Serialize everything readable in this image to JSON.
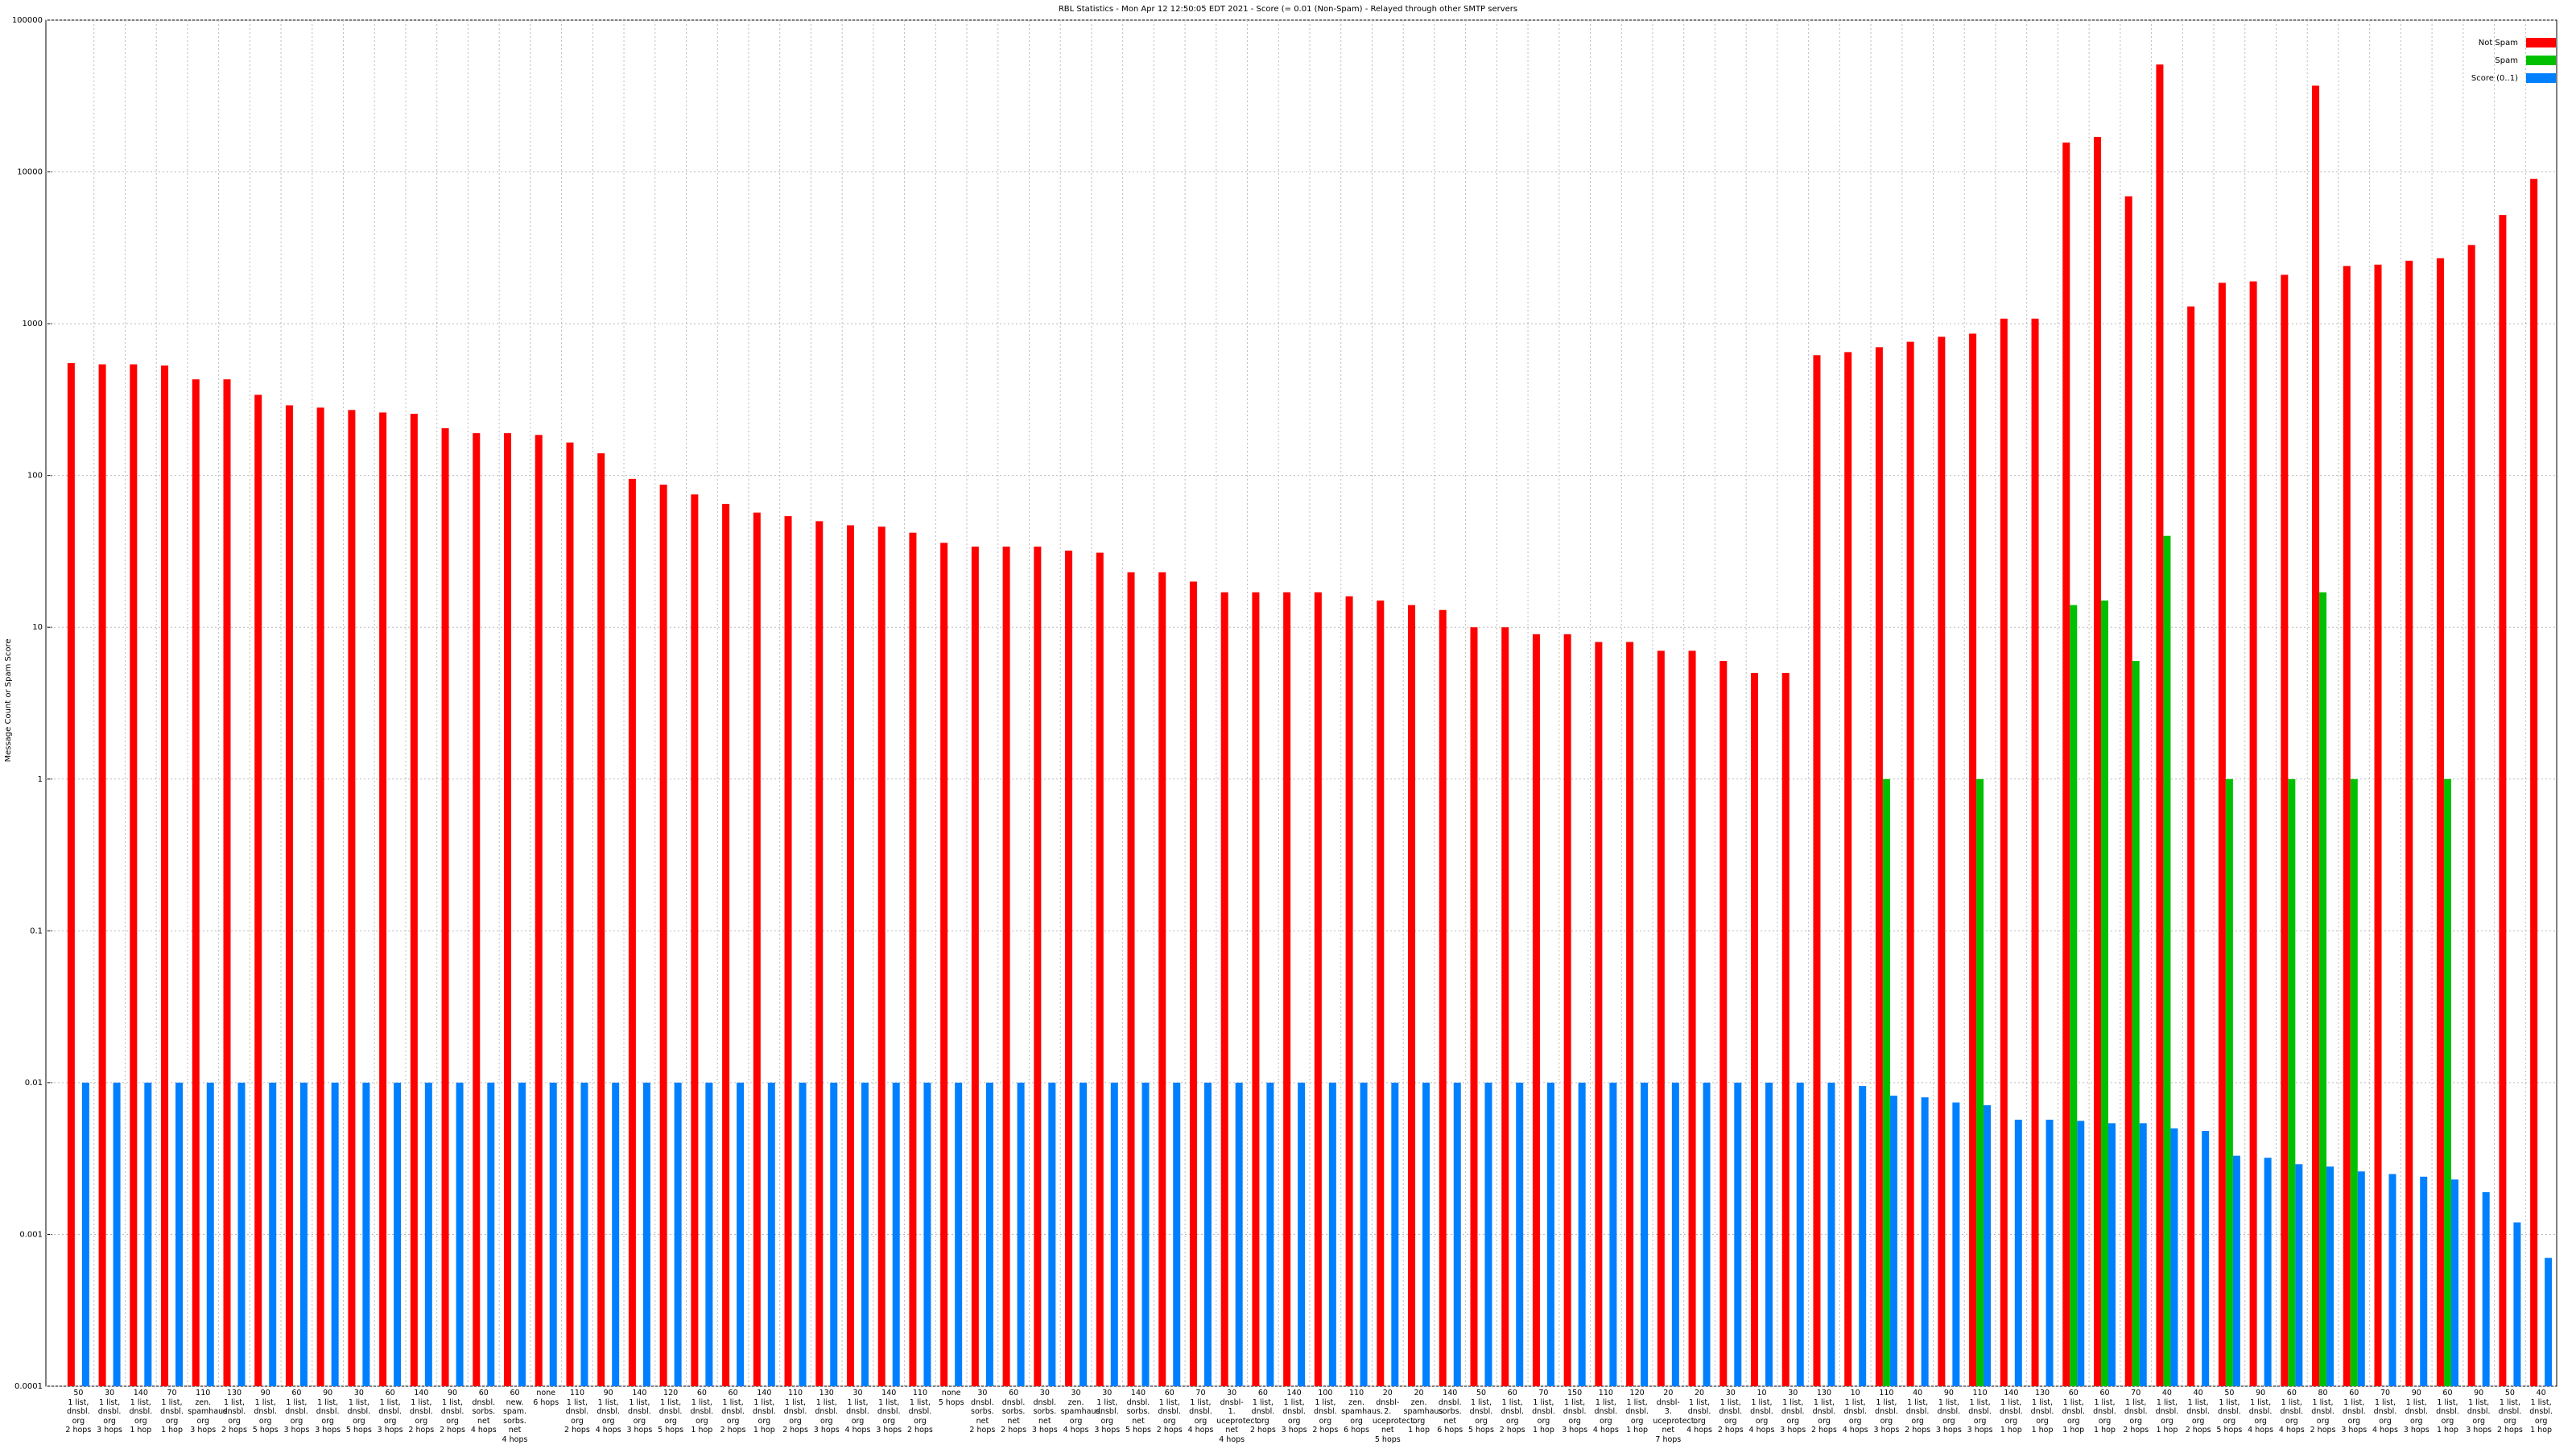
{
  "chart_data": {
    "type": "bar",
    "title": "RBL Statistics - Mon Apr 12 12:50:05 EDT 2021 - Score (= 0.01 (Non-Spam) - Relayed through other SMTP servers",
    "y_label": "Message Count or Spam Score",
    "log_scale": true,
    "grid": true,
    "legend": "upper right",
    "ylim": [
      0.0001,
      100000
    ],
    "yticks": [
      0.0001,
      0.001,
      0.01,
      0.1,
      1,
      10,
      100,
      1000,
      10000,
      100000
    ],
    "categories": [
      "50\n1 list,\ndnsbl.\norg\n2 hops",
      "30\n1 list,\ndnsbl.\norg\n3 hops",
      "140\n1 list,\ndnsbl.\norg\n1 hop",
      "70\n1 list,\ndnsbl.\norg\n1 hop",
      "110\nzen.\nspamhaus.\norg\n3 hops",
      "130\n1 list,\ndnsbl.\norg\n2 hops",
      "90\n1 list,\ndnsbl.\norg\n5 hops",
      "60\n1 list,\ndnsbl.\norg\n3 hops",
      "90\n1 list,\ndnsbl.\norg\n3 hops",
      "30\n1 list,\ndnsbl.\norg\n5 hops",
      "60\n1 list,\ndnsbl.\norg\n3 hops",
      "140\n1 list,\ndnsbl.\norg\n2 hops",
      "90\n1 list,\ndnsbl.\norg\n2 hops",
      "60\ndnsbl.\nsorbs.\nnet\n4 hops",
      "60\nnew.\nspam.\nsorbs.\nnet\n4 hops",
      "none\n6 hops",
      "110\n1 list,\ndnsbl.\norg\n2 hops",
      "90\n1 list,\ndnsbl.\norg\n4 hops",
      "140\n1 list,\ndnsbl.\norg\n3 hops",
      "120\n1 list,\ndnsbl.\norg\n5 hops",
      "60\n1 list,\ndnsbl.\norg\n1 hop",
      "60\n1 list,\ndnsbl.\norg\n2 hops",
      "140\n1 list,\ndnsbl.\norg\n1 hop",
      "110\n1 list,\ndnsbl.\norg\n2 hops",
      "130\n1 list,\ndnsbl.\norg\n3 hops",
      "30\n1 list,\ndnsbl.\norg\n4 hops",
      "140\n1 list,\ndnsbl.\norg\n3 hops",
      "110\n1 list,\ndnsbl.\norg\n2 hops",
      "none\n5 hops",
      "30\ndnsbl.\nsorbs.\nnet\n2 hops",
      "60\ndnsbl.\nsorbs.\nnet\n2 hops",
      "30\ndnsbl.\nsorbs.\nnet\n3 hops",
      "30\nzen.\nspamhaus.\norg\n4 hops",
      "30\n1 list,\ndnsbl.\norg\n3 hops",
      "140\ndnsbl.\nsorbs.\nnet\n5 hops",
      "60\n1 list,\ndnsbl.\norg\n2 hops",
      "70\n1 list,\ndnsbl.\norg\n4 hops",
      "30\ndnsbl-1.\nuceprotect.\nnet\n4 hops",
      "60\n1 list,\ndnsbl.\norg\n2 hops",
      "140\n1 list,\ndnsbl.\norg\n3 hops",
      "100\n1 list,\ndnsbl.\norg\n2 hops",
      "110\nzen.\nspamhaus.\norg\n6 hops",
      "20\ndnsbl-2.\nuceprotect.\nnet\n5 hops",
      "20\nzen.\nspamhaus.\norg\n1 hop",
      "140\ndnsbl.\nsorbs.\nnet\n6 hops",
      "50\n1 list,\ndnsbl.\norg\n5 hops",
      "60\n1 list,\ndnsbl.\norg\n2 hops",
      "70\n1 list,\ndnsbl.\norg\n1 hop",
      "150\n1 list,\ndnsbl.\norg\n3 hops",
      "110\n1 list,\ndnsbl.\norg\n4 hops",
      "120\n1 list,\ndnsbl.\norg\n1 hop",
      "20\ndnsbl-3.\nuceprotect.\nnet\n7 hops",
      "20\n1 list,\ndnsbl.\norg\n4 hops",
      "30\n1 list,\ndnsbl.\norg\n2 hops",
      "10\n1 list,\ndnsbl.\norg\n4 hops",
      "30\n1 list,\ndnsbl.\norg\n3 hops",
      "130\n1 list,\ndnsbl.\norg\n2 hops",
      "10\n1 list,\ndnsbl.\norg\n4 hops",
      "110\n1 list,\ndnsbl.\norg\n3 hops",
      "40\n1 list,\ndnsbl.\norg\n2 hops",
      "90\n1 list,\ndnsbl.\norg\n3 hops",
      "110\n1 list,\ndnsbl.\norg\n3 hops",
      "140\n1 list,\ndnsbl.\norg\n1 hop",
      "130\n1 list,\ndnsbl.\norg\n1 hop",
      "60\n1 list,\ndnsbl.\norg\n1 hop",
      "60\n1 list,\ndnsbl.\norg\n1 hop",
      "70\n1 list,\ndnsbl.\norg\n2 hops",
      "40\n1 list,\ndnsbl.\norg\n1 hop",
      "40\n1 list,\ndnsbl.\norg\n2 hops",
      "50\n1 list,\ndnsbl.\norg\n5 hops",
      "90\n1 list,\ndnsbl.\norg\n4 hops",
      "60\n1 list,\ndnsbl.\norg\n4 hops",
      "80\n1 list,\ndnsbl.\norg\n2 hops",
      "60\n1 list,\ndnsbl.\norg\n3 hops",
      "70\n1 list,\ndnsbl.\norg\n4 hops",
      "90\n1 list,\ndnsbl.\norg\n3 hops",
      "60\n1 list,\ndnsbl.\norg\n1 hop",
      "90\n1 list,\ndnsbl.\norg\n3 hops",
      "50\n1 list,\ndnsbl.\norg\n2 hops",
      "40\n1 list,\ndnsbl.\norg\n1 hop"
    ],
    "series": [
      {
        "name": "Not Spam",
        "color": "#ff0000",
        "values": [
          550,
          540,
          540,
          530,
          430,
          430,
          340,
          290,
          280,
          270,
          260,
          255,
          205,
          190,
          190,
          185,
          165,
          140,
          95,
          87,
          75,
          65,
          57,
          54,
          50,
          47,
          46,
          42,
          36,
          34,
          34,
          34,
          32,
          31,
          23,
          23,
          20,
          17,
          17,
          17,
          17,
          16,
          15,
          14,
          13,
          10,
          10,
          9,
          9,
          8,
          8,
          7,
          7,
          6,
          5,
          5,
          620,
          650,
          700,
          760,
          820,
          860,
          1080,
          1080,
          15600,
          17000,
          6900,
          51000,
          1300,
          1860,
          1900,
          2100,
          37000,
          2400,
          2450,
          2600,
          2700,
          3300,
          5200,
          9000
        ]
      },
      {
        "name": "Spam",
        "color": "#00c000",
        "values": [
          null,
          null,
          null,
          null,
          null,
          null,
          null,
          null,
          null,
          null,
          null,
          null,
          null,
          null,
          null,
          null,
          null,
          null,
          null,
          null,
          null,
          null,
          null,
          null,
          null,
          null,
          null,
          null,
          null,
          null,
          null,
          null,
          null,
          null,
          null,
          null,
          null,
          null,
          null,
          null,
          null,
          null,
          null,
          null,
          null,
          null,
          null,
          null,
          null,
          null,
          null,
          null,
          null,
          null,
          null,
          null,
          null,
          null,
          1,
          null,
          null,
          1,
          null,
          null,
          14,
          15,
          6,
          40,
          null,
          1,
          null,
          1,
          17,
          1,
          null,
          null,
          1,
          null,
          null,
          null
        ]
      },
      {
        "name": "Score (0..1)",
        "color": "#0080ff",
        "values": [
          0.01,
          0.01,
          0.01,
          0.01,
          0.01,
          0.01,
          0.01,
          0.01,
          0.01,
          0.01,
          0.01,
          0.01,
          0.01,
          0.01,
          0.01,
          0.01,
          0.01,
          0.01,
          0.01,
          0.01,
          0.01,
          0.01,
          0.01,
          0.01,
          0.01,
          0.01,
          0.01,
          0.01,
          0.01,
          0.01,
          0.01,
          0.01,
          0.01,
          0.01,
          0.01,
          0.01,
          0.01,
          0.01,
          0.01,
          0.01,
          0.01,
          0.01,
          0.01,
          0.01,
          0.01,
          0.01,
          0.01,
          0.01,
          0.01,
          0.01,
          0.01,
          0.01,
          0.01,
          0.01,
          0.01,
          0.01,
          0.01,
          0.0095,
          0.0082,
          0.008,
          0.0074,
          0.0071,
          0.0057,
          0.0057,
          0.0056,
          0.0054,
          0.0054,
          0.005,
          0.0048,
          0.0033,
          0.0032,
          0.0029,
          0.0028,
          0.0026,
          0.0025,
          0.0024,
          0.0023,
          0.0019,
          0.0012,
          0.0007
        ]
      }
    ]
  }
}
